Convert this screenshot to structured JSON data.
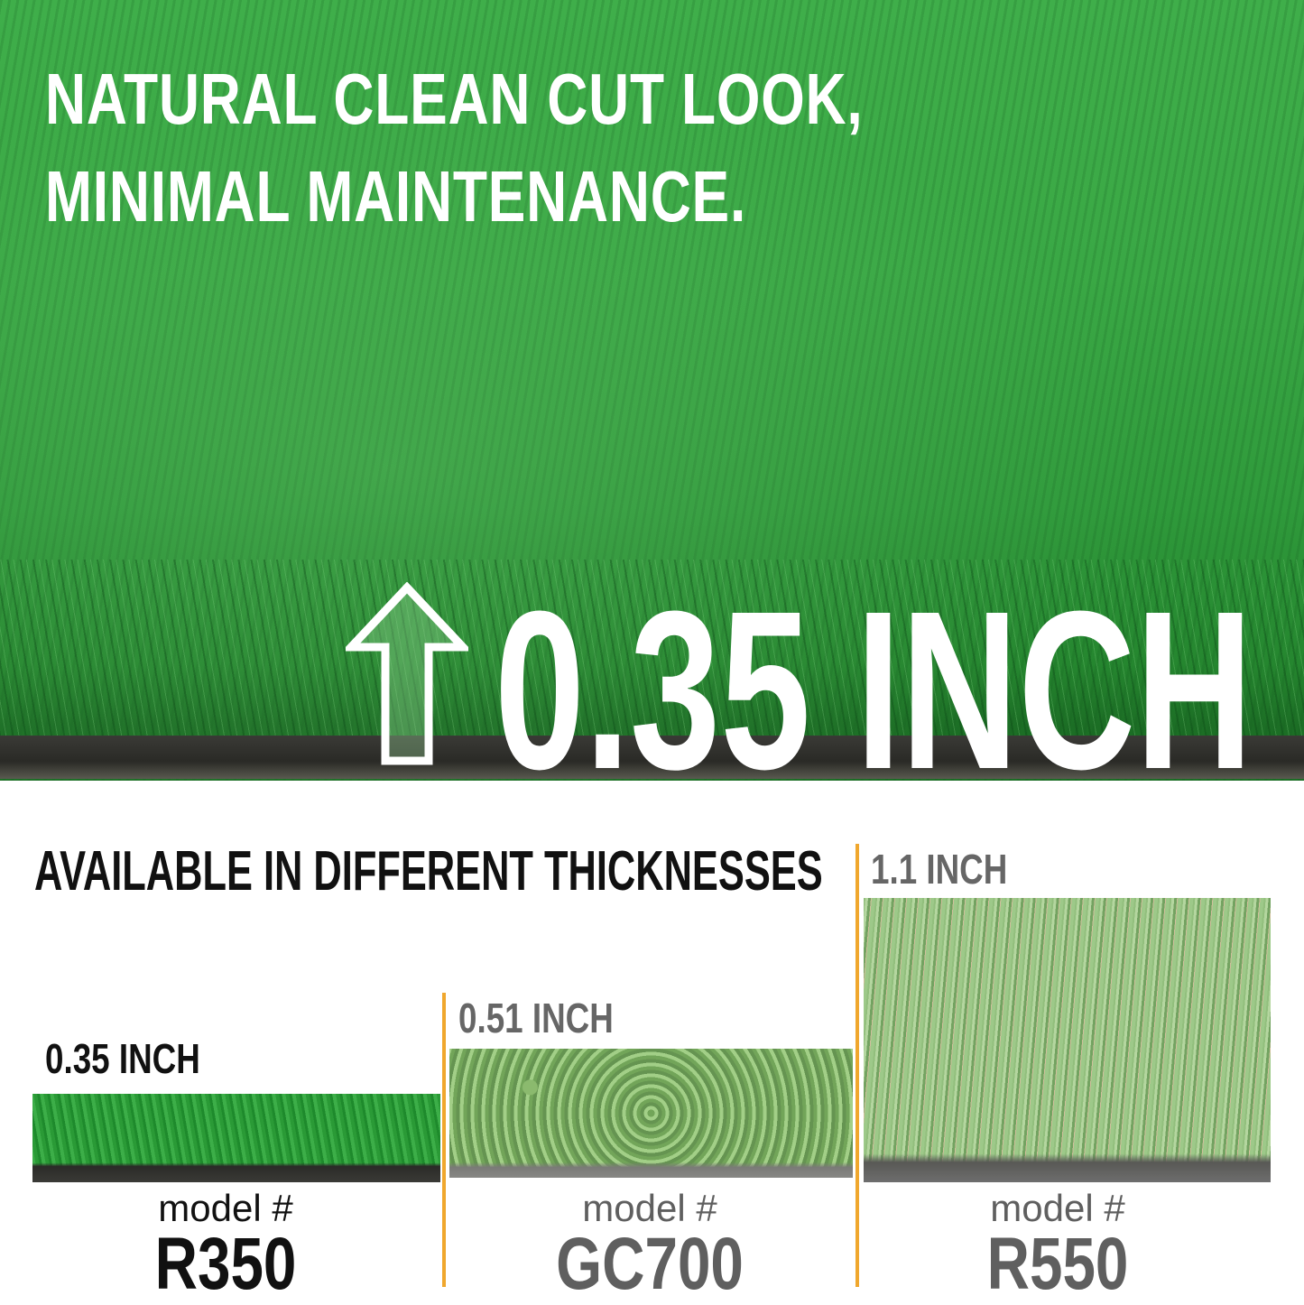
{
  "hero": {
    "headline_line1": "NATURAL CLEAN CUT LOOK,",
    "headline_line2": "MINIMAL MAINTENANCE.",
    "thickness": "0.35 INCH",
    "arrow_icon": "arrow-up-outline-icon"
  },
  "comparison": {
    "title": "AVAILABLE IN DIFFERENT THICKNESSES",
    "accent_color": "#f0a72d",
    "models": [
      {
        "thickness": "0.35 INCH",
        "model_label": "model #",
        "model": "R350",
        "color": "#111111"
      },
      {
        "thickness": "0.51 INCH",
        "model_label": "model #",
        "model": "GC700",
        "color": "#5f5f5f"
      },
      {
        "thickness": "1.1 INCH",
        "model_label": "model #",
        "model": "R550",
        "color": "#5f5f5f"
      }
    ]
  }
}
